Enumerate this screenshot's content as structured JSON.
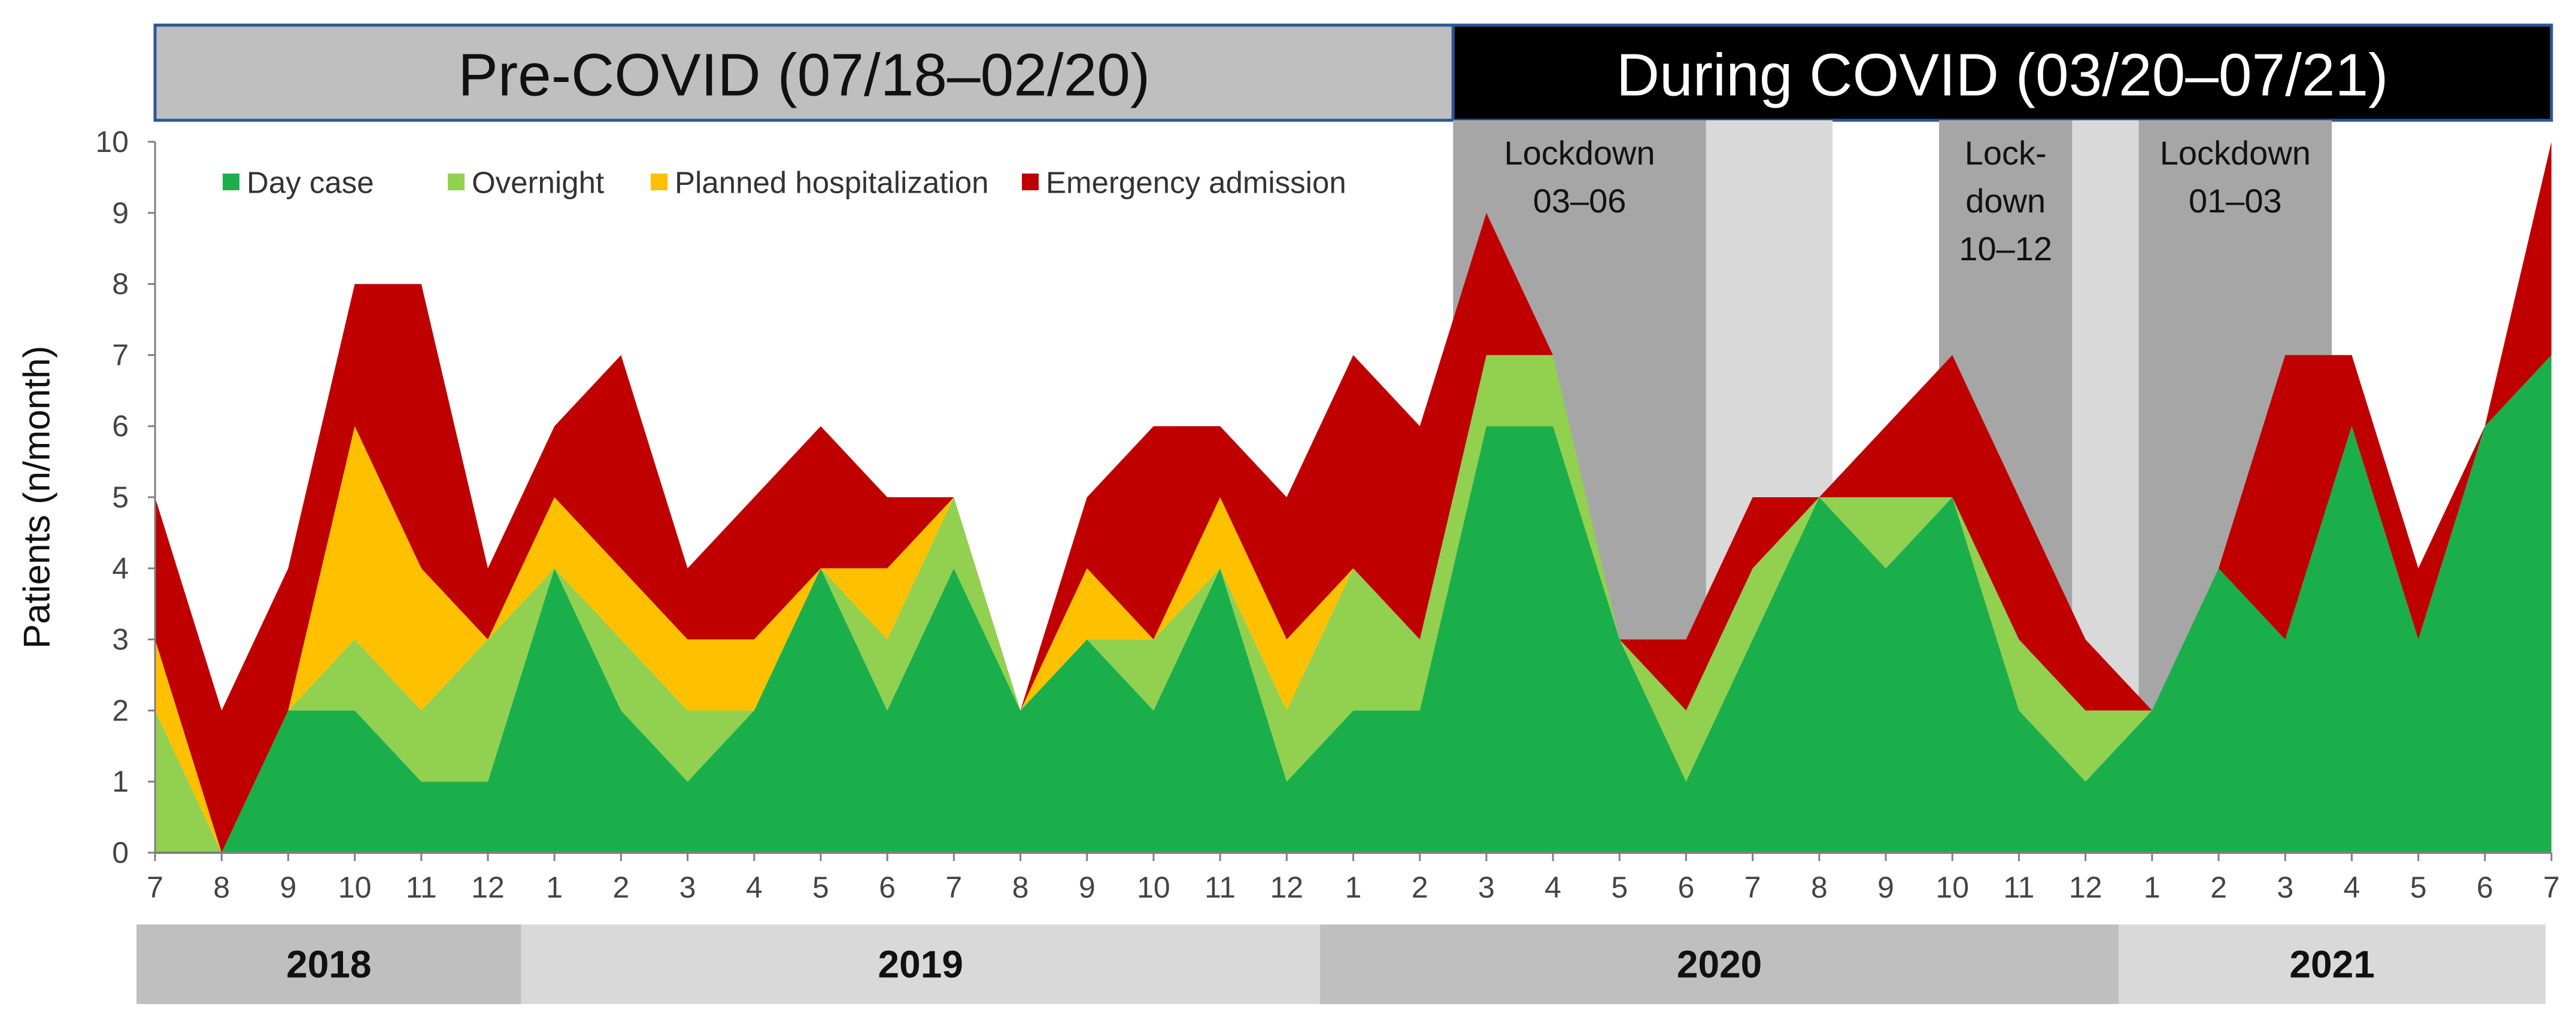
{
  "banners": {
    "pre": {
      "label": "Pre-COVID (07/18–02/20)",
      "from": 0,
      "to": 19.5,
      "fill": "#bfbfbf",
      "text_color": "#111111"
    },
    "during": {
      "label": "During COVID (03/20–07/21)",
      "from": 19.5,
      "to": 36,
      "fill": "#000000",
      "text_color": "#ffffff"
    },
    "border": "#2f5597"
  },
  "lockdowns": [
    {
      "label_lines": [
        "Lockdown",
        "03–06"
      ],
      "from": 19.5,
      "to": 23.3,
      "fill": "#a6a6a6"
    },
    {
      "label_lines": [],
      "from": 23.3,
      "to": 25.2,
      "fill": "#d9d9d9"
    },
    {
      "label_lines": [
        "Lock-",
        "down",
        "10–12"
      ],
      "from": 26.8,
      "to": 28.8,
      "fill": "#a6a6a6"
    },
    {
      "label_lines": [],
      "from": 28.8,
      "to": 29.8,
      "fill": "#d9d9d9"
    },
    {
      "label_lines": [
        "Lockdown",
        "01–03"
      ],
      "from": 29.8,
      "to": 32.7,
      "fill": "#a6a6a6"
    }
  ],
  "years": [
    {
      "label": "2018",
      "from": -0.5,
      "to": 5.5,
      "fill": "#bfbfbf"
    },
    {
      "label": "2019",
      "from": 5.5,
      "to": 17.5,
      "fill": "#d9d9d9"
    },
    {
      "label": "2020",
      "from": 17.5,
      "to": 29.5,
      "fill": "#bfbfbf"
    },
    {
      "label": "2021",
      "from": 29.5,
      "to": 36.5,
      "fill": "#d9d9d9"
    }
  ],
  "chart_data": {
    "type": "area",
    "stacked": true,
    "title": "",
    "xlabel": "",
    "ylabel": "Patients (n/month)",
    "ylim": [
      0,
      10
    ],
    "yticks": [
      0,
      1,
      2,
      3,
      4,
      5,
      6,
      7,
      8,
      9,
      10
    ],
    "grid": false,
    "legend": "top-left",
    "categories": [
      "7",
      "8",
      "9",
      "10",
      "11",
      "12",
      "1",
      "2",
      "3",
      "4",
      "5",
      "6",
      "7",
      "8",
      "9",
      "10",
      "11",
      "12",
      "1",
      "2",
      "3",
      "4",
      "5",
      "6",
      "7",
      "8",
      "9",
      "10",
      "11",
      "12",
      "1",
      "2",
      "3",
      "4",
      "5",
      "6",
      "7"
    ],
    "series": [
      {
        "name": "Day case",
        "color": "#1aaf4b",
        "values": [
          0,
          0,
          2,
          2,
          1,
          1,
          4,
          2,
          1,
          2,
          4,
          2,
          4,
          2,
          3,
          2,
          4,
          1,
          2,
          2,
          6,
          6,
          3,
          1,
          3,
          5,
          4,
          5,
          2,
          1,
          2,
          4,
          3,
          6,
          3,
          6,
          7
        ]
      },
      {
        "name": "Overnight",
        "color": "#92d050",
        "values": [
          2,
          0,
          0,
          1,
          1,
          2,
          0,
          1,
          1,
          0,
          0,
          1,
          1,
          0,
          0,
          1,
          0,
          1,
          2,
          1,
          1,
          1,
          0,
          1,
          1,
          0,
          1,
          0,
          1,
          1,
          0,
          0,
          0,
          0,
          0,
          0,
          0
        ]
      },
      {
        "name": "Planned hospitalization",
        "color": "#ffc000",
        "values": [
          1,
          0,
          0,
          3,
          2,
          0,
          1,
          1,
          1,
          1,
          0,
          1,
          0,
          0,
          1,
          0,
          1,
          1,
          0,
          0,
          0,
          0,
          0,
          0,
          0,
          0,
          0,
          0,
          0,
          0,
          0,
          0,
          0,
          0,
          0,
          0,
          0
        ]
      },
      {
        "name": "Emergency admission",
        "color": "#c00000",
        "values": [
          2,
          2,
          2,
          2,
          4,
          1,
          1,
          3,
          1,
          2,
          2,
          1,
          0,
          0,
          1,
          3,
          1,
          2,
          3,
          3,
          2,
          0,
          0,
          1,
          1,
          0,
          1,
          2,
          2,
          1,
          0,
          0,
          4,
          1,
          1,
          0,
          3
        ]
      }
    ]
  }
}
